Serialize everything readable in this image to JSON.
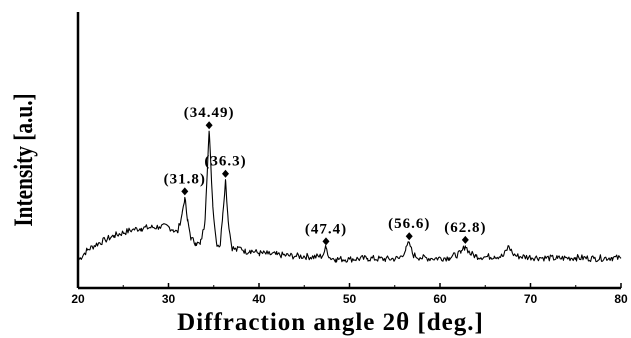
{
  "chart_data": {
    "type": "line",
    "title": "",
    "xlabel": "Diffraction angle 2θ [deg.]",
    "ylabel": "Intensity [a.u.]",
    "xlim": [
      20,
      80
    ],
    "xticks": [
      "20",
      "30",
      "40",
      "50",
      "60",
      "70",
      "80"
    ],
    "yticks": [],
    "grid": false,
    "legend": "none",
    "line_color": "#000000",
    "series": [
      {
        "x": [
          20,
          21,
          22,
          23,
          24,
          25,
          26,
          27,
          28,
          29,
          30,
          30.5,
          31,
          31.5,
          31.8,
          32.1,
          32.5,
          33,
          33.5,
          34,
          34.49,
          34.9,
          35.3,
          35.7,
          36.0,
          36.3,
          36.6,
          37,
          37.5,
          38,
          38.5,
          39,
          40,
          41,
          42,
          43,
          44,
          45,
          46,
          47,
          47.4,
          47.8,
          48.5,
          50,
          52,
          54,
          55.5,
          56.2,
          56.6,
          57,
          57.8,
          59,
          61,
          62.3,
          62.8,
          63.3,
          64,
          65,
          66,
          67,
          67.6,
          68,
          68.5,
          69.5,
          71,
          73,
          75,
          77,
          79,
          80
        ],
        "y": [
          0.03,
          0.1,
          0.14,
          0.17,
          0.2,
          0.22,
          0.24,
          0.25,
          0.255,
          0.26,
          0.26,
          0.24,
          0.22,
          0.35,
          0.46,
          0.3,
          0.18,
          0.15,
          0.14,
          0.28,
          0.91,
          0.4,
          0.15,
          0.13,
          0.35,
          0.58,
          0.3,
          0.12,
          0.1,
          0.12,
          0.09,
          0.1,
          0.08,
          0.075,
          0.07,
          0.065,
          0.06,
          0.06,
          0.055,
          0.06,
          0.12,
          0.05,
          0.04,
          0.04,
          0.045,
          0.04,
          0.045,
          0.1,
          0.155,
          0.07,
          0.05,
          0.045,
          0.05,
          0.08,
          0.13,
          0.08,
          0.06,
          0.055,
          0.06,
          0.06,
          0.13,
          0.08,
          0.06,
          0.055,
          0.05,
          0.045,
          0.05,
          0.045,
          0.05,
          0.045
        ]
      }
    ],
    "annotations": [
      {
        "text": "(31.8)",
        "x": 31.8,
        "y": 0.46
      },
      {
        "text": "(34.49)",
        "x": 34.49,
        "y": 0.91
      },
      {
        "text": "(36.3)",
        "x": 36.3,
        "y": 0.58
      },
      {
        "text": "(47.4)",
        "x": 47.4,
        "y": 0.12
      },
      {
        "text": "(56.6)",
        "x": 56.6,
        "y": 0.155
      },
      {
        "text": "(62.8)",
        "x": 62.8,
        "y": 0.13
      }
    ]
  }
}
